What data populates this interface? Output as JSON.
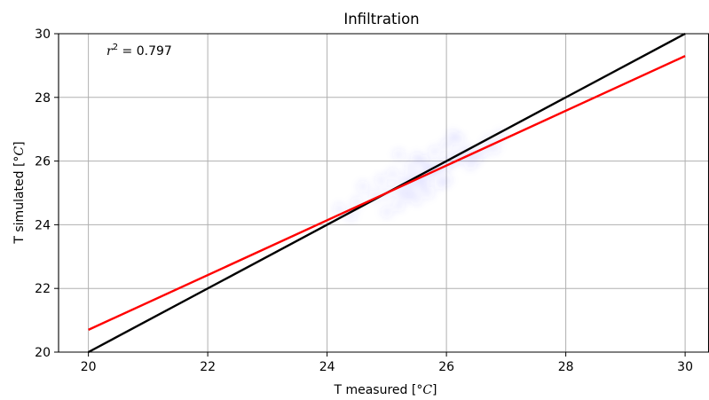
{
  "chart_data": {
    "type": "scatter",
    "title": "Infiltration",
    "xlabel_main": "T measured [",
    "xlabel_unit": "°C",
    "xlabel_close": "]",
    "ylabel_main": "T simulated [",
    "ylabel_unit": "°C",
    "ylabel_close": "]",
    "xlim": [
      19.5,
      30.4
    ],
    "ylim": [
      20,
      30
    ],
    "xticks": [
      20,
      22,
      24,
      26,
      28,
      30
    ],
    "yticks": [
      20,
      22,
      24,
      26,
      28,
      30
    ],
    "grid": true,
    "annotation": {
      "r_symbol": "r",
      "exponent": "2",
      "value_text": " = 0.797"
    },
    "series": [
      {
        "type": "line",
        "color": "#000000",
        "x": [
          20,
          30
        ],
        "y": [
          20,
          30
        ]
      },
      {
        "type": "line",
        "color": "#ff0000",
        "x": [
          20,
          30
        ],
        "y": [
          20.7,
          29.3
        ]
      }
    ],
    "density": {
      "color": "#3333ff",
      "points": [
        [
          24.2,
          24.5
        ],
        [
          24.5,
          24.7
        ],
        [
          24.8,
          24.9
        ],
        [
          25.0,
          25.0
        ],
        [
          25.2,
          25.1
        ],
        [
          25.3,
          24.9
        ],
        [
          25.4,
          25.3
        ],
        [
          25.5,
          25.5
        ],
        [
          25.6,
          25.2
        ],
        [
          25.7,
          25.6
        ],
        [
          25.8,
          25.7
        ],
        [
          25.9,
          25.8
        ],
        [
          26.0,
          25.9
        ],
        [
          26.1,
          26.0
        ],
        [
          26.2,
          26.1
        ],
        [
          26.3,
          26.2
        ],
        [
          26.4,
          26.3
        ],
        [
          26.5,
          26.1
        ],
        [
          26.6,
          26.3
        ],
        [
          26.8,
          26.4
        ],
        [
          25.1,
          25.6
        ],
        [
          25.4,
          25.8
        ],
        [
          25.6,
          26.0
        ],
        [
          25.8,
          26.3
        ],
        [
          26.0,
          26.5
        ],
        [
          26.2,
          26.7
        ],
        [
          25.2,
          24.6
        ],
        [
          25.5,
          24.8
        ],
        [
          25.7,
          25.0
        ],
        [
          25.9,
          25.3
        ],
        [
          25.3,
          25.4
        ],
        [
          25.6,
          25.4
        ],
        [
          26.4,
          25.9
        ],
        [
          26.7,
          26.6
        ],
        [
          24.6,
          25.2
        ],
        [
          24.9,
          25.4
        ],
        [
          25.5,
          26.1
        ],
        [
          26.1,
          26.8
        ],
        [
          24.4,
          24.3
        ],
        [
          25.0,
          24.4
        ],
        [
          25.2,
          26.2
        ],
        [
          26.9,
          26.8
        ],
        [
          26.0,
          25.4
        ],
        [
          25.7,
          25.8
        ],
        [
          25.4,
          25.0
        ]
      ]
    }
  }
}
